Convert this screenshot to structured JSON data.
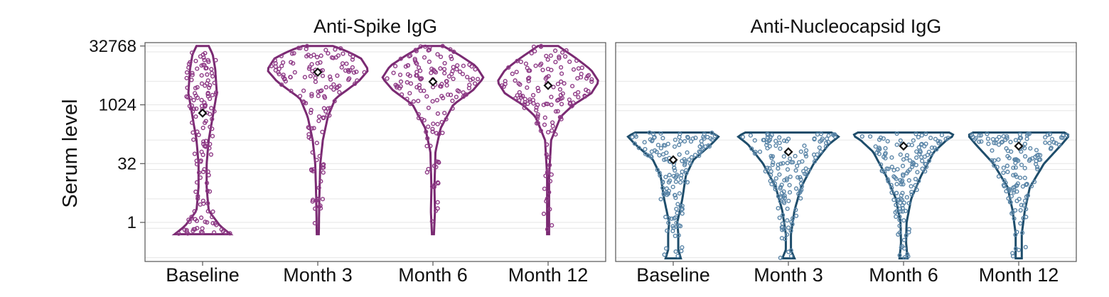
{
  "chart_data": {
    "type": "violin",
    "ylabel": "Serum level",
    "yscale": "log2",
    "ylim": [
      0.1,
      40000
    ],
    "yticks": [
      1,
      32,
      1024,
      32768
    ],
    "ytick_labels": [
      "1",
      "32",
      "1024",
      "32768"
    ],
    "categories": [
      "Baseline",
      "Month 3",
      "Month 6",
      "Month 12"
    ],
    "panels": [
      {
        "title": "Anti-Spike IgG",
        "color": "#7a2a72",
        "point_color": "#8e3a86",
        "series": [
          {
            "category": "Baseline",
            "mean": 630,
            "min": 0.5,
            "max": 32768,
            "shape": [
              [
                0.5,
                0.55
              ],
              [
                0.8,
                0.35
              ],
              [
                2,
                0.12
              ],
              [
                8,
                0.08
              ],
              [
                32,
                0.08
              ],
              [
                128,
                0.12
              ],
              [
                512,
                0.2
              ],
              [
                2048,
                0.28
              ],
              [
                8192,
                0.25
              ],
              [
                20000,
                0.2
              ],
              [
                32768,
                0.12
              ]
            ]
          },
          {
            "category": "Month 3",
            "mean": 7000,
            "min": 0.5,
            "max": 32768,
            "shape": [
              [
                0.5,
                0.02
              ],
              [
                4,
                0.03
              ],
              [
                32,
                0.05
              ],
              [
                128,
                0.1
              ],
              [
                512,
                0.2
              ],
              [
                1500,
                0.35
              ],
              [
                4000,
                0.8
              ],
              [
                8000,
                1.0
              ],
              [
                16000,
                0.85
              ],
              [
                25000,
                0.55
              ],
              [
                32768,
                0.3
              ]
            ]
          },
          {
            "category": "Month 6",
            "mean": 4000,
            "min": 0.5,
            "max": 32768,
            "shape": [
              [
                0.5,
                0.02
              ],
              [
                2,
                0.04
              ],
              [
                8,
                0.03
              ],
              [
                64,
                0.05
              ],
              [
                256,
                0.15
              ],
              [
                1024,
                0.4
              ],
              [
                2500,
                0.8
              ],
              [
                5000,
                1.0
              ],
              [
                10000,
                0.85
              ],
              [
                20000,
                0.5
              ],
              [
                32768,
                0.2
              ]
            ]
          },
          {
            "category": "Month 12",
            "mean": 3200,
            "min": 0.5,
            "max": 32768,
            "shape": [
              [
                0.5,
                0.02
              ],
              [
                2,
                0.02
              ],
              [
                16,
                0.02
              ],
              [
                128,
                0.06
              ],
              [
                512,
                0.25
              ],
              [
                1024,
                0.5
              ],
              [
                2000,
                0.85
              ],
              [
                4000,
                1.0
              ],
              [
                8000,
                0.85
              ],
              [
                16000,
                0.55
              ],
              [
                32768,
                0.2
              ]
            ]
          }
        ]
      },
      {
        "title": "Anti-Nucleocapsid IgG",
        "color": "#1e4d6b",
        "point_color": "#5b86a8",
        "series": [
          {
            "category": "Baseline",
            "mean": 40,
            "min": 0.12,
            "max": 200,
            "shape": [
              [
                0.12,
                0.15
              ],
              [
                0.2,
                0.1
              ],
              [
                0.5,
                0.1
              ],
              [
                1,
                0.08
              ],
              [
                4,
                0.18
              ],
              [
                16,
                0.25
              ],
              [
                40,
                0.4
              ],
              [
                100,
                0.75
              ],
              [
                160,
                0.9
              ],
              [
                200,
                0.75
              ]
            ]
          },
          {
            "category": "Month 3",
            "mean": 64,
            "min": 0.12,
            "max": 200,
            "shape": [
              [
                0.12,
                0.12
              ],
              [
                0.2,
                0.05
              ],
              [
                0.5,
                0.05
              ],
              [
                2,
                0.12
              ],
              [
                8,
                0.25
              ],
              [
                32,
                0.5
              ],
              [
                100,
                0.8
              ],
              [
                160,
                1.0
              ],
              [
                200,
                0.85
              ]
            ]
          },
          {
            "category": "Month 6",
            "mean": 90,
            "min": 0.12,
            "max": 200,
            "shape": [
              [
                0.12,
                0.08
              ],
              [
                0.3,
                0.05
              ],
              [
                1,
                0.06
              ],
              [
                4,
                0.15
              ],
              [
                16,
                0.35
              ],
              [
                64,
                0.6
              ],
              [
                128,
                0.85
              ],
              [
                170,
                1.0
              ],
              [
                200,
                0.9
              ]
            ]
          },
          {
            "category": "Month 12",
            "mean": 90,
            "min": 0.12,
            "max": 200,
            "shape": [
              [
                0.12,
                0.06
              ],
              [
                0.5,
                0.06
              ],
              [
                2,
                0.12
              ],
              [
                8,
                0.22
              ],
              [
                32,
                0.5
              ],
              [
                100,
                0.85
              ],
              [
                170,
                1.0
              ],
              [
                200,
                0.9
              ]
            ]
          }
        ]
      }
    ]
  }
}
